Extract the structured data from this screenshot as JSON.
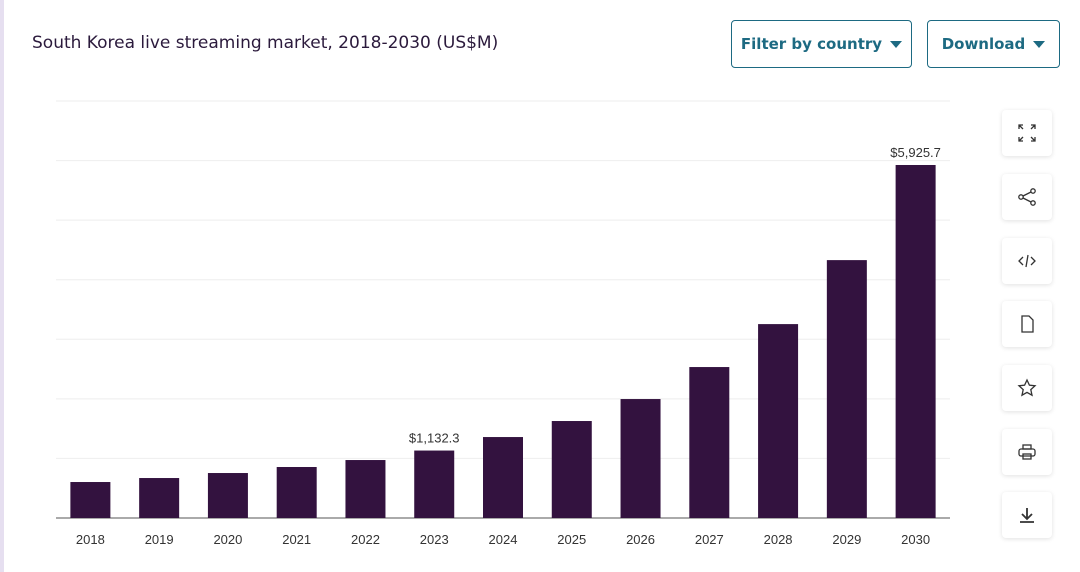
{
  "title": "South Korea live streaming market, 2018-2030 (US$M)",
  "buttons": [
    "Filter by country",
    "Download"
  ],
  "chart_data": {
    "type": "bar",
    "categories": [
      "2018",
      "2019",
      "2020",
      "2021",
      "2022",
      "2023",
      "2024",
      "2025",
      "2026",
      "2027",
      "2028",
      "2029",
      "2030"
    ],
    "values": [
      604,
      671,
      755,
      856,
      973,
      1132.3,
      1359,
      1628,
      1997,
      2534,
      3255,
      4329,
      5925.7
    ],
    "value_labels": [
      null,
      null,
      null,
      null,
      null,
      "$1,132.3",
      null,
      null,
      null,
      null,
      null,
      null,
      "$5,925.7"
    ],
    "color": "#33123f",
    "ylim": [
      0,
      7000
    ],
    "yticks": [
      0,
      1000,
      2000,
      3000,
      4000,
      5000,
      6000,
      7000
    ],
    "grid": true
  }
}
